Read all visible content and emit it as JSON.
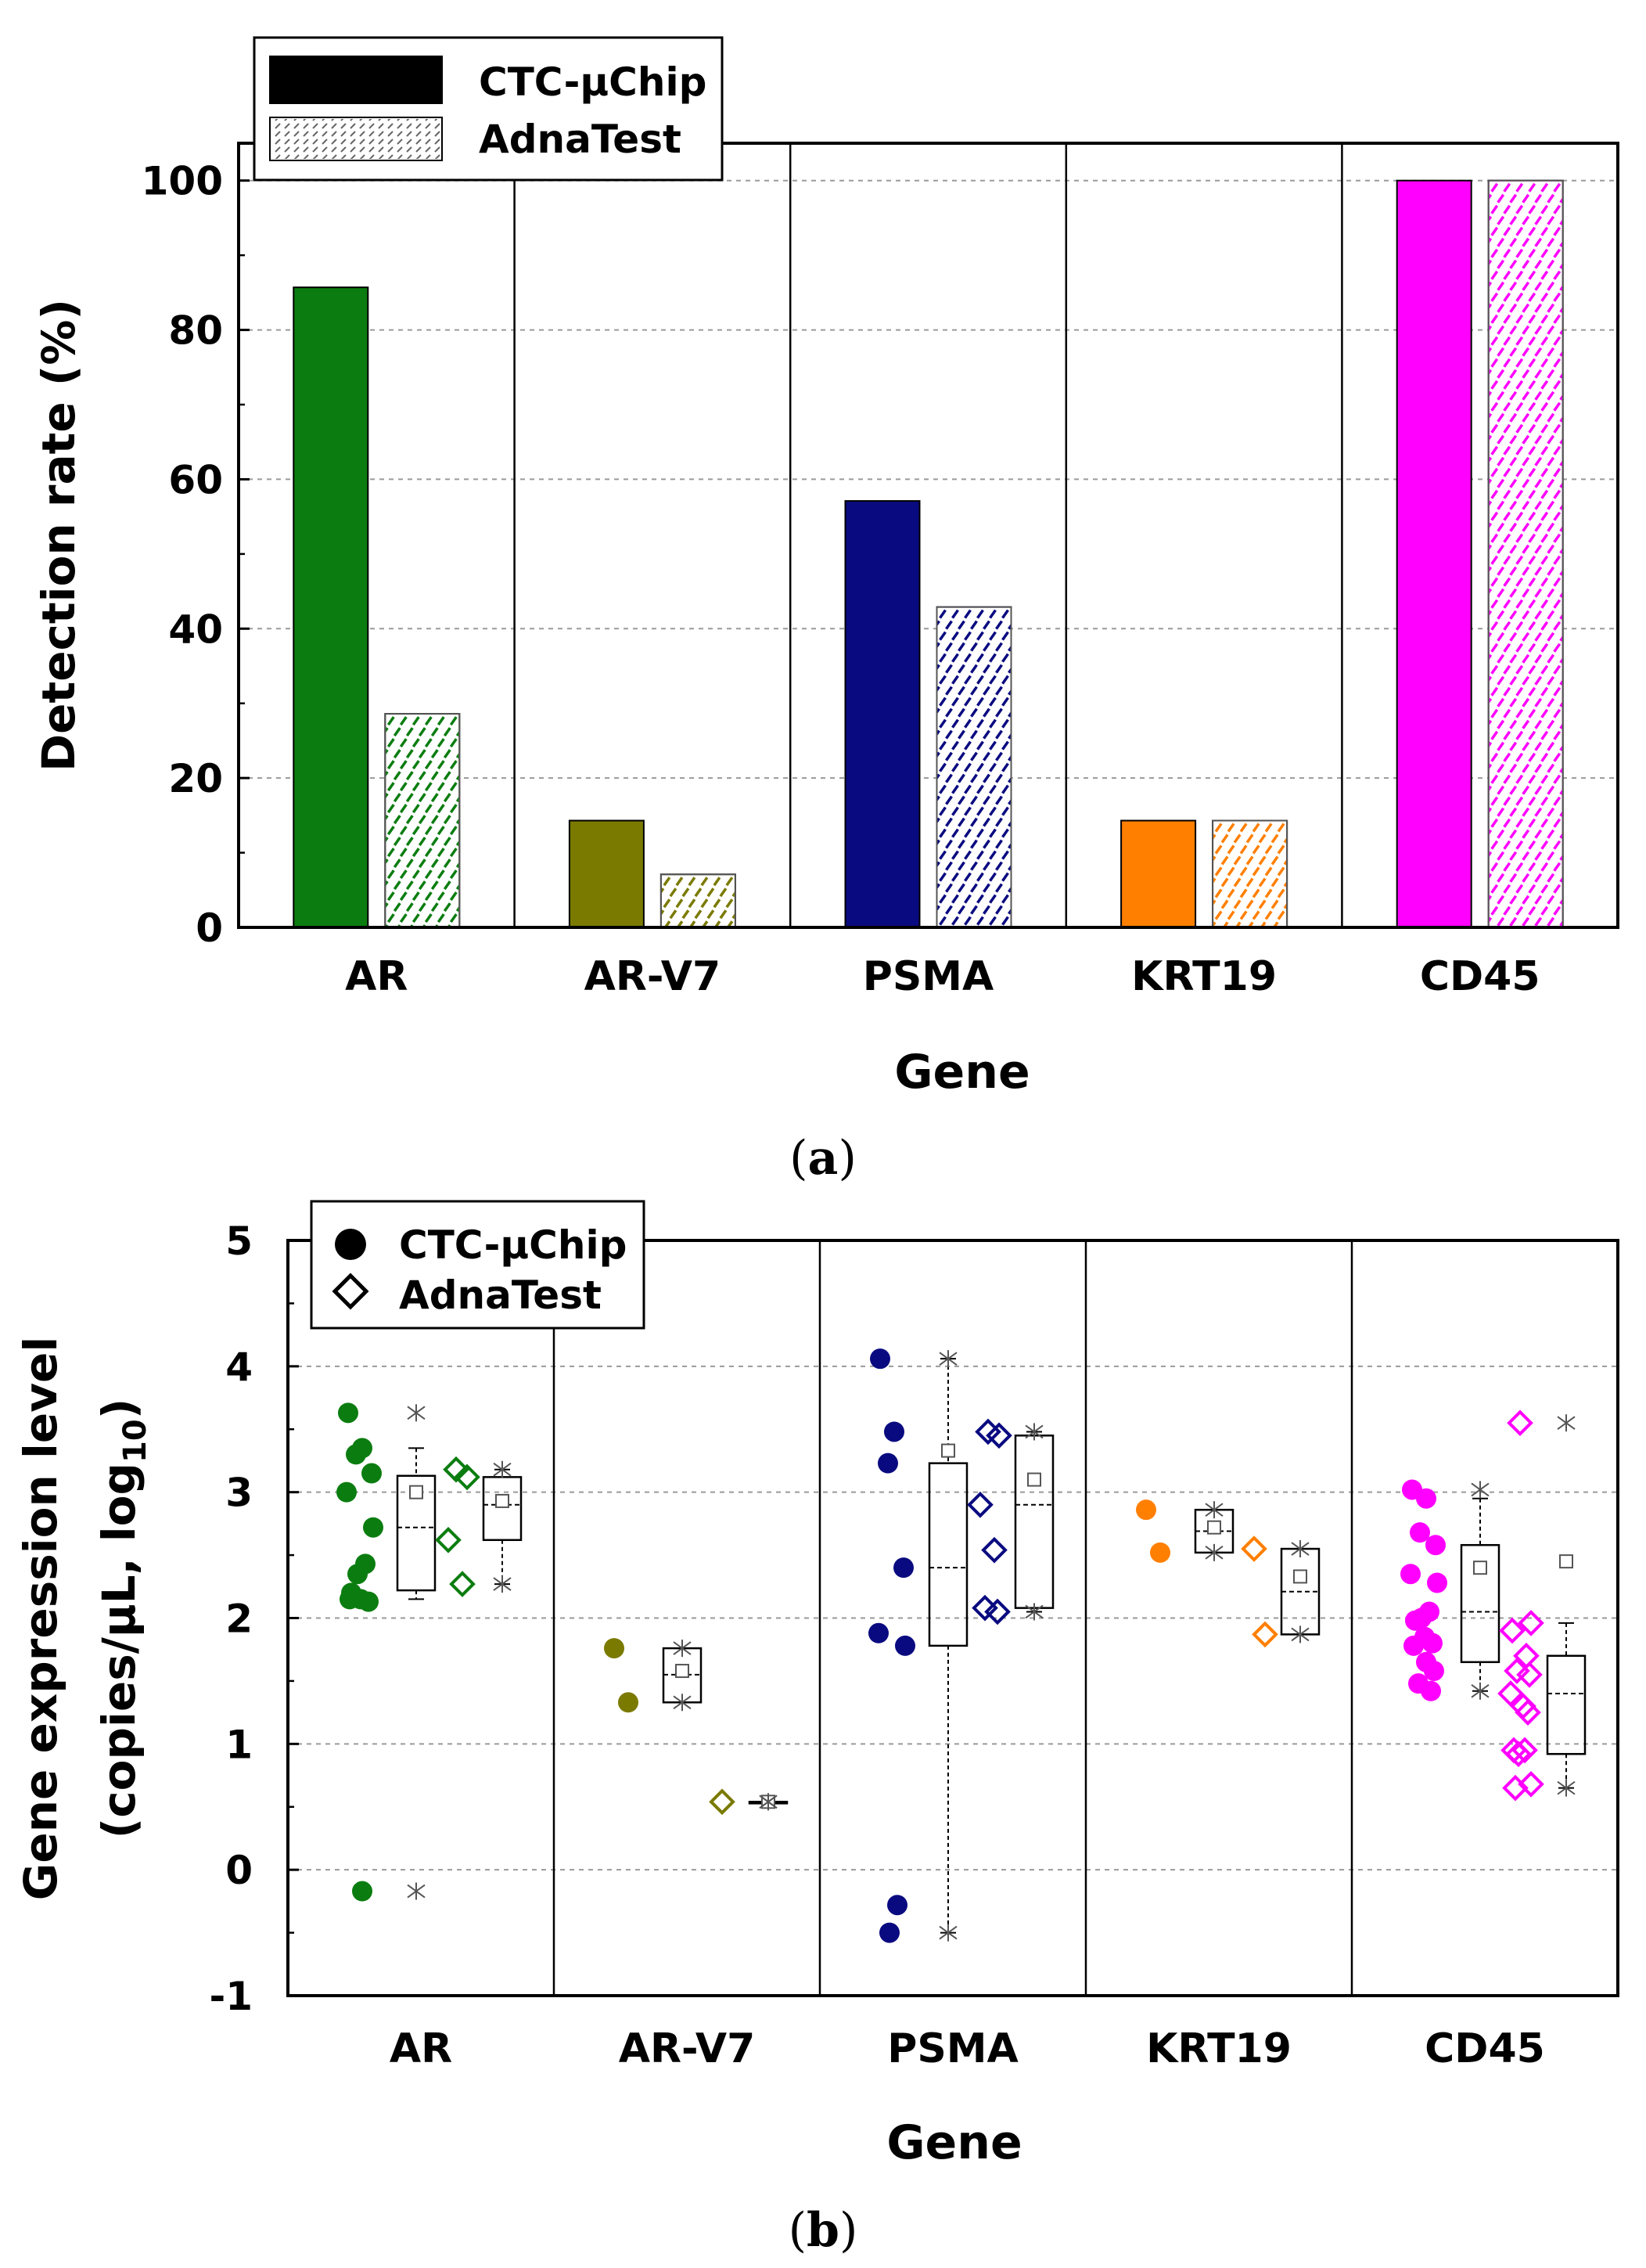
{
  "colors": {
    "AR": "#0b7d10",
    "AR-V7": "#7a7a00",
    "PSMA": "#0a0a80",
    "KRT19": "#ff7f00",
    "CD45": "#ff00ff"
  },
  "chart_data": [
    {
      "id": "a",
      "type": "bar",
      "panel_label_prefix": "(",
      "panel_label_letter": "a",
      "panel_label_suffix": ")",
      "categories": [
        "AR",
        "AR-V7",
        "PSMA",
        "KRT19",
        "CD45"
      ],
      "series": [
        {
          "name": "CTC-μChip",
          "pattern": "solid",
          "values": [
            85.7,
            14.3,
            57.1,
            14.3,
            100
          ]
        },
        {
          "name": "AdnaTest",
          "pattern": "hatched",
          "values": [
            28.6,
            7.1,
            42.9,
            14.3,
            100
          ]
        }
      ],
      "xlabel": "Gene",
      "ylabel": "Detection rate (%)",
      "ylim": [
        0,
        105
      ],
      "yticks": [
        "0",
        "20",
        "40",
        "60",
        "80",
        "100"
      ],
      "grid": "horizontal dashed",
      "legend": "top-left"
    },
    {
      "id": "b",
      "type": "scatter",
      "panel_label_prefix": "(",
      "panel_label_letter": "b",
      "panel_label_suffix": ")",
      "categories": [
        "AR",
        "AR-V7",
        "PSMA",
        "KRT19",
        "CD45"
      ],
      "xlabel": "Gene",
      "ylabel_line1": "Gene expression level",
      "ylabel_line2_main": "(copies/μL, log",
      "ylabel_line2_sub": "10",
      "ylabel_line2_end": ")",
      "ylim": [
        -1,
        5
      ],
      "yticks": [
        "-1",
        "0",
        "1",
        "2",
        "3",
        "4",
        "5"
      ],
      "grid": "horizontal dashed",
      "legend": "top-left",
      "series": [
        {
          "name": "CTC-μChip",
          "marker": "filled-circle"
        },
        {
          "name": "AdnaTest",
          "marker": "open-diamond"
        }
      ],
      "groups": [
        {
          "gene": "AR",
          "ctc_points": [
            3.63,
            3.35,
            3.3,
            3.15,
            3.0,
            2.72,
            2.43,
            2.35,
            2.2,
            2.15,
            2.13,
            2.15,
            -0.17
          ],
          "ctc_box": {
            "q1": 2.22,
            "median": 2.72,
            "q3": 3.13,
            "mean": 3.0,
            "whisker_low": 2.15,
            "whisker_high": 3.35,
            "min": -0.17,
            "max": 3.63
          },
          "adna_points": [
            3.18,
            3.12,
            2.62,
            2.27
          ],
          "adna_box": {
            "q1": 2.62,
            "median": 2.9,
            "q3": 3.12,
            "mean": 2.93,
            "whisker_low": 2.27,
            "whisker_high": 3.18,
            "min": 2.27,
            "max": 3.18
          }
        },
        {
          "gene": "AR-V7",
          "ctc_points": [
            1.76,
            1.33
          ],
          "ctc_box": {
            "q1": 1.33,
            "median": 1.55,
            "q3": 1.76,
            "mean": 1.58,
            "whisker_low": 1.33,
            "whisker_high": 1.76,
            "min": 1.33,
            "max": 1.76
          },
          "adna_points": [
            0.54
          ],
          "adna_box": {
            "q1": 0.54,
            "median": 0.54,
            "q3": 0.54,
            "mean": 0.54,
            "whisker_low": 0.54,
            "whisker_high": 0.54,
            "min": 0.54,
            "max": 0.54
          }
        },
        {
          "gene": "PSMA",
          "ctc_points": [
            4.06,
            3.48,
            3.23,
            2.4,
            1.88,
            1.78,
            -0.28,
            -0.5
          ],
          "ctc_box": {
            "q1": 1.78,
            "median": 2.4,
            "q3": 3.23,
            "mean": 3.33,
            "whisker_low": -0.5,
            "whisker_high": 4.06,
            "min": -0.5,
            "max": 4.06
          },
          "adna_points": [
            3.48,
            3.45,
            2.9,
            2.54,
            2.08,
            2.05
          ],
          "adna_box": {
            "q1": 2.08,
            "median": 2.9,
            "q3": 3.45,
            "mean": 3.1,
            "whisker_low": 2.05,
            "whisker_high": 3.48,
            "min": 2.05,
            "max": 3.48
          }
        },
        {
          "gene": "KRT19",
          "ctc_points": [
            2.86,
            2.52
          ],
          "ctc_box": {
            "q1": 2.52,
            "median": 2.69,
            "q3": 2.86,
            "mean": 2.72,
            "whisker_low": 2.52,
            "whisker_high": 2.86,
            "min": 2.52,
            "max": 2.86
          },
          "adna_points": [
            2.55,
            1.87
          ],
          "adna_box": {
            "q1": 1.87,
            "median": 2.21,
            "q3": 2.55,
            "mean": 2.33,
            "whisker_low": 1.87,
            "whisker_high": 2.55,
            "min": 1.87,
            "max": 2.55
          }
        },
        {
          "gene": "CD45",
          "ctc_points": [
            3.02,
            2.95,
            2.68,
            2.58,
            2.35,
            2.28,
            2.05,
            2.0,
            1.98,
            1.85,
            1.8,
            1.78,
            1.65,
            1.58,
            1.48,
            1.42
          ],
          "ctc_box": {
            "q1": 1.65,
            "median": 2.05,
            "q3": 2.58,
            "mean": 2.4,
            "whisker_low": 1.42,
            "whisker_high": 2.95,
            "min": 1.42,
            "max": 3.02
          },
          "adna_points": [
            3.55,
            1.96,
            1.9,
            1.7,
            1.58,
            1.55,
            1.4,
            1.3,
            1.25,
            0.95,
            0.95,
            0.92,
            0.68,
            0.65
          ],
          "adna_box": {
            "q1": 0.92,
            "median": 1.4,
            "q3": 1.7,
            "mean": 2.45,
            "whisker_low": 0.65,
            "whisker_high": 1.96,
            "min": 0.65,
            "max": 3.55
          }
        }
      ]
    }
  ]
}
